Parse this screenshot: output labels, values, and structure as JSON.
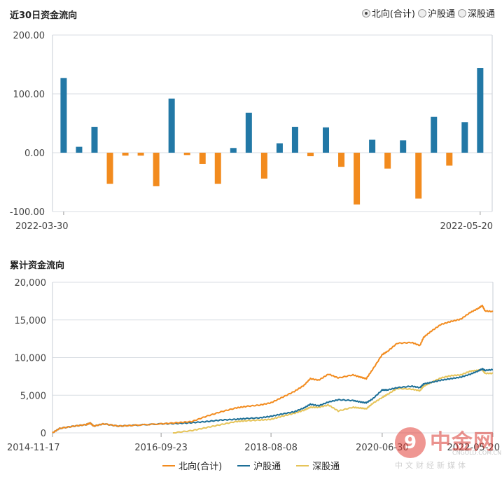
{
  "top_title": "近30日资金流向",
  "radio": {
    "options": [
      "北向(合计)",
      "沪股通",
      "深股通"
    ],
    "selected_index": 0
  },
  "bottom_title": "累计资金流向",
  "colors": {
    "positive": "#2278a6",
    "negative": "#f28b1e",
    "north": "#f28b1e",
    "sh": "#1d6f97",
    "sz": "#e6c459",
    "grid": "#d9dde3"
  },
  "watermark": {
    "name": "中金网",
    "domain": "CNGOLD.COM.CN",
    "sub": "中文财经新媒体"
  },
  "chart_data": [
    {
      "type": "bar",
      "ylim": [
        -100,
        200
      ],
      "yticks": [
        "200.00",
        "100.00",
        "0.00",
        "-100.00"
      ],
      "ytick_values": [
        200,
        100,
        0,
        -100
      ],
      "x_start_label": "2022-03-30",
      "x_end_label": "2022-05-20",
      "values": [
        127,
        10,
        44,
        -53,
        -5,
        -5,
        -57,
        92,
        -4,
        -19,
        -53,
        8,
        68,
        -44,
        16,
        44,
        -6,
        43,
        -24,
        -88,
        22,
        -27,
        21,
        -78,
        61,
        -22,
        52,
        144
      ]
    },
    {
      "type": "line",
      "ylim": [
        0,
        20000
      ],
      "yticks": [
        "20,000",
        "15,000",
        "10,000",
        "5,000",
        "0"
      ],
      "ytick_values": [
        20000,
        15000,
        10000,
        5000,
        0
      ],
      "x_ticks": [
        "2014-11-17",
        "2016-09-23",
        "2018-08-08",
        "2020-06-30",
        "2022-05-20"
      ],
      "x_dates": [
        "2014-11-17",
        "2016-09-23",
        "2018-08-08",
        "2020-06-30",
        "2022-05-20"
      ],
      "series": [
        {
          "name": "北向(合计)",
          "dates": [
            "2014-11-17",
            "2015-01-01",
            "2015-04-01",
            "2015-06-15",
            "2015-07-10",
            "2015-08-01",
            "2015-10-01",
            "2016-01-01",
            "2016-04-01",
            "2016-09-23",
            "2017-01-01",
            "2017-04-01",
            "2017-07-01",
            "2017-10-01",
            "2018-01-01",
            "2018-03-01",
            "2018-06-01",
            "2018-08-08",
            "2018-10-15",
            "2018-12-31",
            "2019-02-28",
            "2019-04-10",
            "2019-06-01",
            "2019-08-01",
            "2019-10-01",
            "2019-12-31",
            "2020-02-15",
            "2020-03-23",
            "2020-05-01",
            "2020-06-30",
            "2020-08-01",
            "2020-10-01",
            "2020-12-31",
            "2021-02-20",
            "2021-03-15",
            "2021-05-01",
            "2021-07-01",
            "2021-09-01",
            "2021-11-01",
            "2021-12-31",
            "2022-02-15",
            "2022-03-15",
            "2022-04-01",
            "2022-05-20"
          ],
          "values": [
            0,
            600,
            900,
            1100,
            1300,
            900,
            1200,
            900,
            1000,
            1200,
            1350,
            1500,
            2200,
            2800,
            3300,
            3500,
            3700,
            4000,
            4700,
            5500,
            6300,
            7200,
            7000,
            7800,
            7300,
            7700,
            7400,
            7200,
            8400,
            10400,
            10800,
            11900,
            12000,
            11600,
            12700,
            13500,
            14400,
            14800,
            15100,
            16000,
            16500,
            16900,
            16200,
            16100
          ]
        },
        {
          "name": "沪股通",
          "dates": [
            "2014-11-17",
            "2015-01-01",
            "2015-04-01",
            "2015-06-15",
            "2015-07-10",
            "2015-08-01",
            "2015-10-01",
            "2016-01-01",
            "2016-04-01",
            "2016-09-23",
            "2017-01-01",
            "2017-04-01",
            "2017-07-01",
            "2017-10-01",
            "2018-01-01",
            "2018-03-01",
            "2018-06-01",
            "2018-08-08",
            "2018-10-15",
            "2018-12-31",
            "2019-02-28",
            "2019-04-10",
            "2019-06-01",
            "2019-08-01",
            "2019-10-01",
            "2019-12-31",
            "2020-02-15",
            "2020-03-23",
            "2020-05-01",
            "2020-06-30",
            "2020-08-01",
            "2020-10-01",
            "2020-12-31",
            "2021-02-20",
            "2021-03-15",
            "2021-05-01",
            "2021-07-01",
            "2021-09-01",
            "2021-11-01",
            "2021-12-31",
            "2022-02-15",
            "2022-03-15",
            "2022-04-01",
            "2022-05-20"
          ],
          "values": [
            0,
            600,
            900,
            1100,
            1300,
            900,
            1200,
            900,
            1000,
            1200,
            1250,
            1350,
            1500,
            1700,
            1800,
            1900,
            2000,
            2200,
            2500,
            2800,
            3300,
            3800,
            3600,
            4100,
            4400,
            4300,
            4100,
            4000,
            4500,
            5700,
            5700,
            6000,
            6200,
            6000,
            6500,
            6700,
            7000,
            7200,
            7400,
            7800,
            8200,
            8500,
            8300,
            8400
          ]
        },
        {
          "name": "深股通",
          "dates": [
            "2016-12-05",
            "2017-04-01",
            "2017-07-01",
            "2017-10-01",
            "2018-01-01",
            "2018-03-01",
            "2018-06-01",
            "2018-08-08",
            "2018-10-15",
            "2018-12-31",
            "2019-02-28",
            "2019-04-10",
            "2019-06-01",
            "2019-08-01",
            "2019-10-01",
            "2019-12-31",
            "2020-02-15",
            "2020-03-23",
            "2020-05-01",
            "2020-06-30",
            "2020-08-01",
            "2020-10-01",
            "2020-12-31",
            "2021-02-20",
            "2021-03-15",
            "2021-05-01",
            "2021-07-01",
            "2021-09-01",
            "2021-11-01",
            "2021-12-31",
            "2022-02-15",
            "2022-03-15",
            "2022-04-01",
            "2022-05-20"
          ],
          "values": [
            0,
            300,
            700,
            1100,
            1500,
            1600,
            1700,
            1800,
            2200,
            2600,
            3000,
            3400,
            3400,
            3700,
            2900,
            3400,
            3300,
            3200,
            3900,
            4700,
            5100,
            5900,
            5800,
            5600,
            6200,
            6700,
            7300,
            7600,
            7700,
            8200,
            8300,
            8400,
            7900,
            7900
          ]
        }
      ]
    }
  ]
}
